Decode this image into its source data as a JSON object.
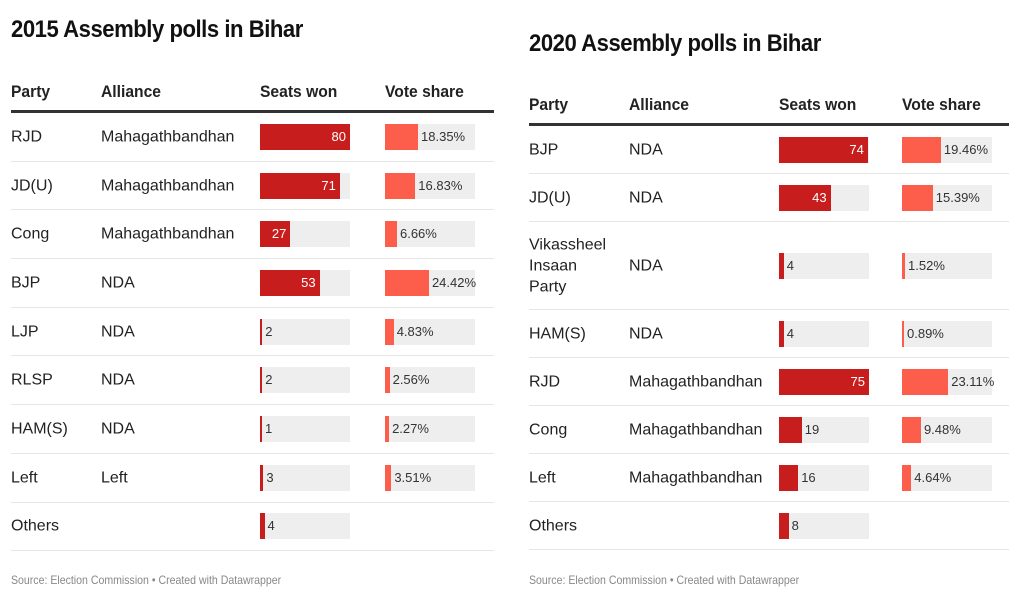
{
  "chart_data": [
    {
      "type": "table",
      "title": "2015 Assembly polls in Bihar",
      "columns": [
        "Party",
        "Alliance",
        "Seats won",
        "Vote share"
      ],
      "seats_scale": [
        0,
        80
      ],
      "vote_scale": [
        0,
        50
      ],
      "rows": [
        {
          "party": "RJD",
          "alliance": "Mahagathbandhan",
          "seats": 80,
          "vote_share": 18.35,
          "vote_label": "18.35%"
        },
        {
          "party": "JD(U)",
          "alliance": "Mahagathbandhan",
          "seats": 71,
          "vote_share": 16.83,
          "vote_label": "16.83%"
        },
        {
          "party": "Cong",
          "alliance": "Mahagathbandhan",
          "seats": 27,
          "vote_share": 6.66,
          "vote_label": "6.66%"
        },
        {
          "party": "BJP",
          "alliance": "NDA",
          "seats": 53,
          "vote_share": 24.42,
          "vote_label": "24.42%"
        },
        {
          "party": "LJP",
          "alliance": "NDA",
          "seats": 2,
          "vote_share": 4.83,
          "vote_label": "4.83%"
        },
        {
          "party": "RLSP",
          "alliance": "NDA",
          "seats": 2,
          "vote_share": 2.56,
          "vote_label": "2.56%"
        },
        {
          "party": "HAM(S)",
          "alliance": "NDA",
          "seats": 1,
          "vote_share": 2.27,
          "vote_label": "2.27%"
        },
        {
          "party": "Left",
          "alliance": "Left",
          "seats": 3,
          "vote_share": 3.51,
          "vote_label": "3.51%"
        },
        {
          "party": "Others",
          "alliance": "",
          "seats": 4,
          "vote_share": null,
          "vote_label": ""
        }
      ],
      "source": "Source: Election Commission • Created with Datawrapper"
    },
    {
      "type": "table",
      "title": "2020 Assembly polls in Bihar",
      "columns": [
        "Party",
        "Alliance",
        "Seats won",
        "Vote share"
      ],
      "seats_scale": [
        0,
        75
      ],
      "vote_scale": [
        0,
        45
      ],
      "rows": [
        {
          "party": "BJP",
          "alliance": "NDA",
          "seats": 74,
          "vote_share": 19.46,
          "vote_label": "19.46%"
        },
        {
          "party": "JD(U)",
          "alliance": "NDA",
          "seats": 43,
          "vote_share": 15.39,
          "vote_label": "15.39%"
        },
        {
          "party": "Vikassheel Insaan Party",
          "alliance": "NDA",
          "seats": 4,
          "vote_share": 1.52,
          "vote_label": "1.52%"
        },
        {
          "party": "HAM(S)",
          "alliance": "NDA",
          "seats": 4,
          "vote_share": 0.89,
          "vote_label": "0.89%"
        },
        {
          "party": "RJD",
          "alliance": "Mahagathbandhan",
          "seats": 75,
          "vote_share": 23.11,
          "vote_label": "23.11%"
        },
        {
          "party": "Cong",
          "alliance": "Mahagathbandhan",
          "seats": 19,
          "vote_share": 9.48,
          "vote_label": "9.48%"
        },
        {
          "party": "Left",
          "alliance": "Mahagathbandhan",
          "seats": 16,
          "vote_share": 4.64,
          "vote_label": "4.64%"
        },
        {
          "party": "Others",
          "alliance": "",
          "seats": 8,
          "vote_share": null,
          "vote_label": ""
        }
      ],
      "source": "Source: Election Commission • Created with Datawrapper"
    }
  ]
}
